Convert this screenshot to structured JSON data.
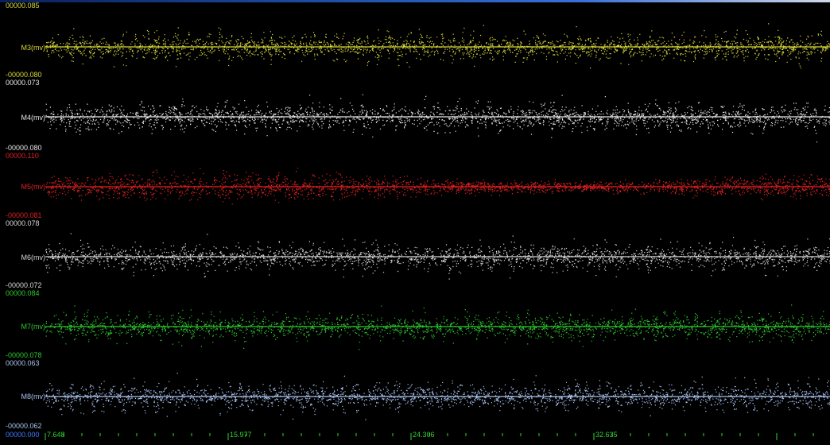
{
  "window": {
    "title_bar_color": "#1f4fa8"
  },
  "chart_data": {
    "type": "scatter",
    "x_origin_label": "00000.000",
    "x_ticks": [
      "7.648",
      "15.977",
      "24.306",
      "32.635"
    ],
    "channels": [
      {
        "name": "M3(mv)",
        "max_label": "00000.085",
        "min_label": "-00000.080",
        "color": "#d8d83a",
        "ylim": [
          -0.08,
          0.085
        ],
        "pattern": "periodic"
      },
      {
        "name": "M4(mv)",
        "max_label": "00000.073",
        "min_label": "-00000.080",
        "color": "#e6e6e6",
        "ylim": [
          -0.08,
          0.073
        ],
        "pattern": "periodic"
      },
      {
        "name": "M5(mv)",
        "max_label": "00000.110",
        "min_label": "-00000.081",
        "color": "#e02020",
        "ylim": [
          -0.081,
          0.11
        ],
        "pattern": "noise"
      },
      {
        "name": "M6(mv)",
        "max_label": "00000.078",
        "min_label": "-00000.072",
        "color": "#d6d6d6",
        "ylim": [
          -0.072,
          0.078
        ],
        "pattern": "periodic"
      },
      {
        "name": "M7(mv)",
        "max_label": "00000.084",
        "min_label": "-00000.078",
        "color": "#2fc82f",
        "ylim": [
          -0.078,
          0.084
        ],
        "pattern": "periodic"
      },
      {
        "name": "M8(mv)",
        "max_label": "00000.063",
        "min_label": "-00000.062",
        "color": "#a9c2ee",
        "ylim": [
          -0.062,
          0.063
        ],
        "pattern": "periodic"
      }
    ]
  }
}
